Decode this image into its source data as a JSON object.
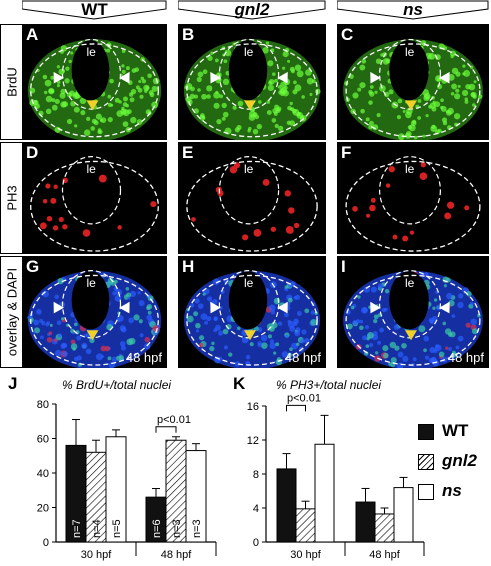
{
  "columns": [
    {
      "label": "WT",
      "italic": false
    },
    {
      "label": "gnl2",
      "italic": true
    },
    {
      "label": "ns",
      "italic": true
    }
  ],
  "rows": [
    {
      "label": "BrdU",
      "color": "#3fbf1f"
    },
    {
      "label": "PH3",
      "color": "#d42020"
    },
    {
      "label": "overlay & DAPI",
      "color": "#1c3fd8"
    }
  ],
  "panels": {
    "letters": [
      "A",
      "B",
      "C",
      "D",
      "E",
      "F",
      "G",
      "H",
      "I"
    ],
    "lumen_label": "le",
    "stage_label": "48 hpf"
  },
  "charts": {
    "J": {
      "letter": "J",
      "title": "% BrdU+/total nuclei"
    },
    "K": {
      "letter": "K",
      "title": "% PH3+/total nuclei"
    }
  },
  "legend": [
    {
      "label": "WT",
      "italic": false,
      "pattern": "black"
    },
    {
      "label": "gnl2",
      "italic": true,
      "pattern": "hatched"
    },
    {
      "label": "ns",
      "italic": true,
      "pattern": "white"
    }
  ],
  "chart_data": [
    {
      "type": "bar",
      "title": "% BrdU+/total nuclei",
      "categories": [
        "30 hpf",
        "48 hpf"
      ],
      "ylim": [
        0,
        80
      ],
      "yticks": [
        0,
        20,
        40,
        60,
        80
      ],
      "series": [
        {
          "name": "WT",
          "values": [
            56,
            26
          ],
          "errors": [
            15,
            5
          ],
          "n": [
            "n=7",
            "n=6"
          ]
        },
        {
          "name": "gnl2",
          "values": [
            52,
            59
          ],
          "errors": [
            7,
            2
          ],
          "n": [
            "n=4",
            "n=3"
          ]
        },
        {
          "name": "ns",
          "values": [
            61,
            53
          ],
          "errors": [
            4,
            4
          ],
          "n": [
            "n=5",
            "n=3"
          ]
        }
      ],
      "significance": [
        {
          "category": "48 hpf",
          "between": [
            "WT",
            "gnl2"
          ],
          "label": "p<0.01"
        }
      ]
    },
    {
      "type": "bar",
      "title": "% PH3+/total nuclei",
      "categories": [
        "30 hpf",
        "48 hpf"
      ],
      "ylim": [
        0,
        16
      ],
      "yticks": [
        0,
        4,
        8,
        12,
        16
      ],
      "series": [
        {
          "name": "WT",
          "values": [
            8.6,
            4.7
          ],
          "errors": [
            1.8,
            1.6
          ]
        },
        {
          "name": "gnl2",
          "values": [
            3.9,
            3.3
          ],
          "errors": [
            0.9,
            0.7
          ]
        },
        {
          "name": "ns",
          "values": [
            11.5,
            6.4
          ],
          "errors": [
            3.4,
            1.2
          ]
        }
      ],
      "significance": [
        {
          "category": "30 hpf",
          "between": [
            "WT",
            "gnl2"
          ],
          "label": "p<0.01"
        }
      ]
    }
  ]
}
